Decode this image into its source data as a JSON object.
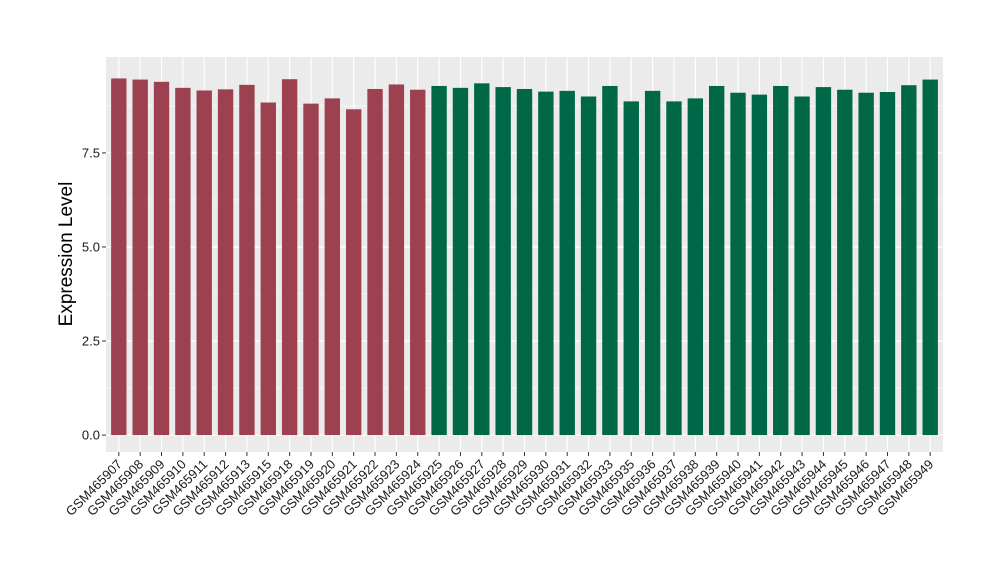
{
  "chart_data": {
    "type": "bar",
    "title": "",
    "xlabel": "",
    "ylabel": "Expression Level",
    "ylim": [
      -0.45,
      10.05
    ],
    "yticks": [
      0.0,
      2.5,
      5.0,
      7.5
    ],
    "ytick_labels": [
      "0.0",
      "2.5",
      "5.0",
      "7.5"
    ],
    "grid": true,
    "legend": "none",
    "categories": [
      "GSM465907",
      "GSM465908",
      "GSM465909",
      "GSM465910",
      "GSM465911",
      "GSM465912",
      "GSM465913",
      "GSM465915",
      "GSM465918",
      "GSM465919",
      "GSM465920",
      "GSM465921",
      "GSM465922",
      "GSM465923",
      "GSM465924",
      "GSM465925",
      "GSM465926",
      "GSM465927",
      "GSM465928",
      "GSM465929",
      "GSM465930",
      "GSM465931",
      "GSM465932",
      "GSM465933",
      "GSM465935",
      "GSM465936",
      "GSM465937",
      "GSM465938",
      "GSM465939",
      "GSM465940",
      "GSM465941",
      "GSM465942",
      "GSM465943",
      "GSM465944",
      "GSM465945",
      "GSM465946",
      "GSM465947",
      "GSM465948",
      "GSM465949"
    ],
    "values": [
      9.48,
      9.45,
      9.39,
      9.23,
      9.16,
      9.19,
      9.31,
      8.84,
      9.46,
      8.81,
      8.95,
      8.66,
      9.2,
      9.32,
      9.18,
      9.28,
      9.23,
      9.35,
      9.25,
      9.2,
      9.13,
      9.15,
      9.0,
      9.28,
      8.87,
      9.15,
      8.87,
      8.95,
      9.28,
      9.1,
      9.05,
      9.28,
      9.0,
      9.25,
      9.18,
      9.1,
      9.12,
      9.3,
      9.45
    ],
    "bar_colors": [
      "#9c4150",
      "#9c4150",
      "#9c4150",
      "#9c4150",
      "#9c4150",
      "#9c4150",
      "#9c4150",
      "#9c4150",
      "#9c4150",
      "#9c4150",
      "#9c4150",
      "#9c4150",
      "#9c4150",
      "#9c4150",
      "#9c4150",
      "#006846",
      "#006846",
      "#006846",
      "#006846",
      "#006846",
      "#006846",
      "#006846",
      "#006846",
      "#006846",
      "#006846",
      "#006846",
      "#006846",
      "#006846",
      "#006846",
      "#006846",
      "#006846",
      "#006846",
      "#006846",
      "#006846",
      "#006846",
      "#006846",
      "#006846",
      "#006846",
      "#006846"
    ],
    "panel_background": "#ebebeb",
    "gridline_color": "#ffffff"
  }
}
